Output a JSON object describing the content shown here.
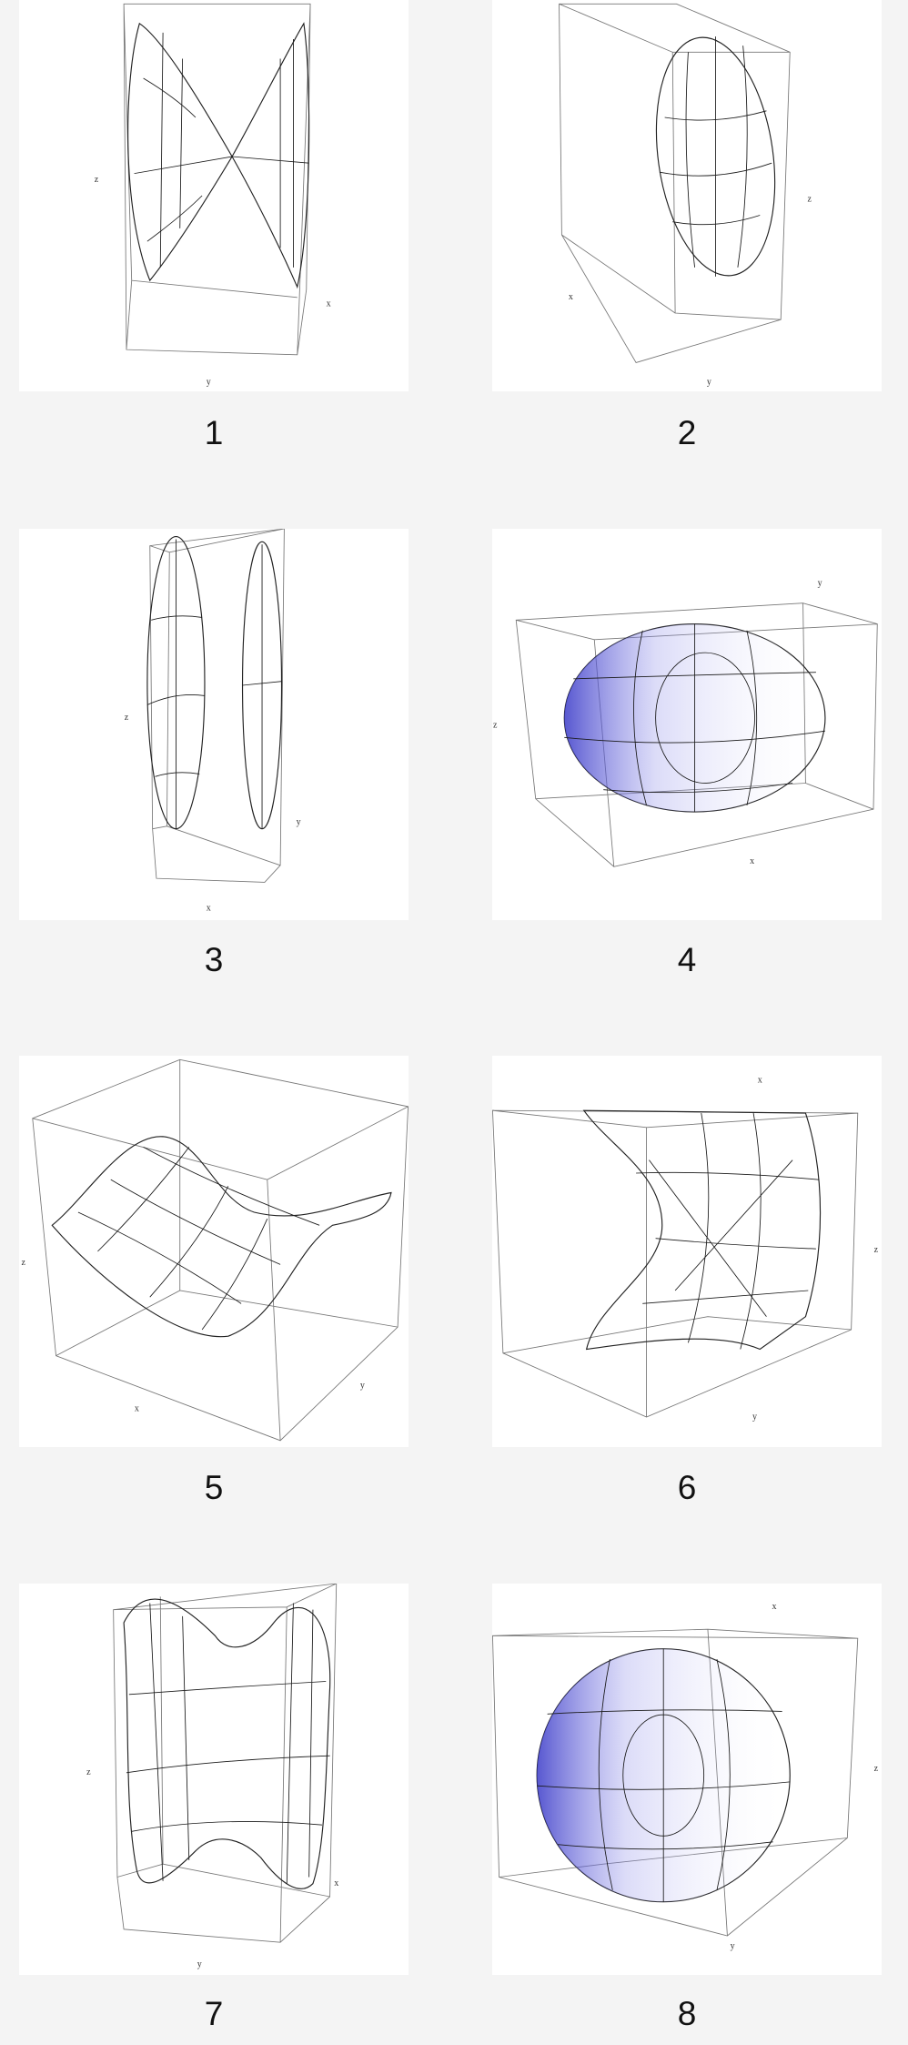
{
  "panels": [
    {
      "label": "1",
      "axes": {
        "x": "x",
        "y": "y",
        "z": "z"
      }
    },
    {
      "label": "2",
      "axes": {
        "x": "x",
        "y": "y",
        "z": "z"
      }
    },
    {
      "label": "3",
      "axes": {
        "x": "x",
        "y": "y",
        "z": "z"
      }
    },
    {
      "label": "4",
      "axes": {
        "x": "x",
        "y": "y",
        "z": "z"
      }
    },
    {
      "label": "5",
      "axes": {
        "x": "x",
        "y": "y",
        "z": "z"
      }
    },
    {
      "label": "6",
      "axes": {
        "x": "x",
        "y": "y",
        "z": "z"
      }
    },
    {
      "label": "7",
      "axes": {
        "x": "x",
        "y": "y",
        "z": "z"
      }
    },
    {
      "label": "8",
      "axes": {
        "x": "x",
        "y": "y",
        "z": "z"
      }
    }
  ]
}
